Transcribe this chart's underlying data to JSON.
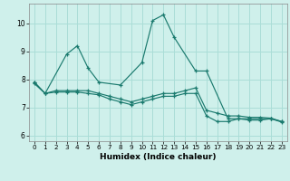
{
  "xlabel": "Humidex (Indice chaleur)",
  "xlim": [
    -0.5,
    23.5
  ],
  "ylim": [
    5.8,
    10.7
  ],
  "yticks": [
    6,
    7,
    8,
    9,
    10
  ],
  "xticks": [
    0,
    1,
    2,
    3,
    4,
    5,
    6,
    7,
    8,
    9,
    10,
    11,
    12,
    13,
    14,
    15,
    16,
    17,
    18,
    19,
    20,
    21,
    22,
    23
  ],
  "bg_color": "#cff0eb",
  "grid_color": "#aaddd7",
  "line_color": "#1a7a6e",
  "lines": [
    {
      "x": [
        0,
        1,
        3,
        4,
        5,
        6,
        8,
        10,
        11,
        12,
        13,
        15,
        16,
        18,
        19,
        20,
        22,
        23
      ],
      "y": [
        7.9,
        7.5,
        8.9,
        9.2,
        8.4,
        7.9,
        7.8,
        8.6,
        10.1,
        10.3,
        9.5,
        8.3,
        8.3,
        6.6,
        6.6,
        6.6,
        6.6,
        6.5
      ]
    },
    {
      "x": [
        0,
        1,
        2,
        3,
        4,
        5,
        6,
        7,
        8,
        9,
        10,
        11,
        12,
        13,
        14,
        15,
        16,
        17,
        18,
        19,
        20,
        21,
        22,
        23
      ],
      "y": [
        7.9,
        7.5,
        7.6,
        7.6,
        7.6,
        7.6,
        7.5,
        7.4,
        7.3,
        7.2,
        7.3,
        7.4,
        7.5,
        7.5,
        7.6,
        7.7,
        6.9,
        6.8,
        6.7,
        6.7,
        6.65,
        6.65,
        6.62,
        6.5
      ]
    },
    {
      "x": [
        0,
        1,
        2,
        3,
        4,
        5,
        6,
        7,
        8,
        9,
        10,
        11,
        12,
        13,
        14,
        15,
        16,
        17,
        18,
        19,
        20,
        21,
        22,
        23
      ],
      "y": [
        7.85,
        7.5,
        7.55,
        7.55,
        7.55,
        7.5,
        7.45,
        7.3,
        7.2,
        7.1,
        7.2,
        7.3,
        7.4,
        7.4,
        7.5,
        7.5,
        6.7,
        6.5,
        6.5,
        6.6,
        6.55,
        6.55,
        6.6,
        6.48
      ]
    }
  ]
}
